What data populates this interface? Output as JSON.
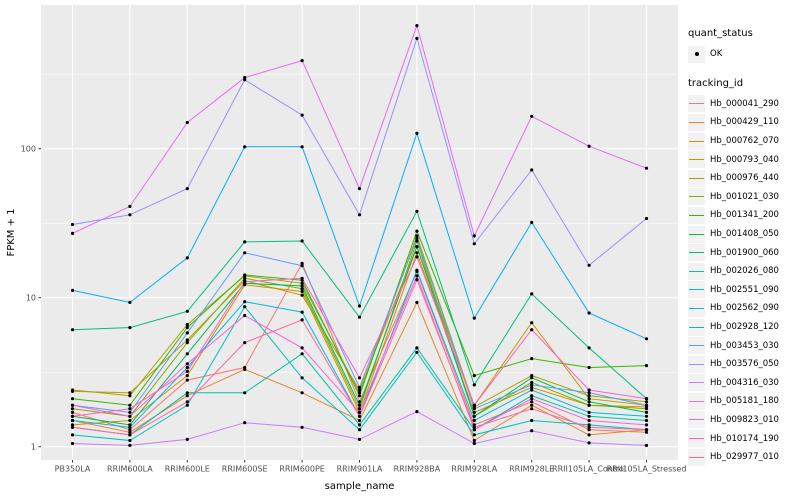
{
  "figure": {
    "y_axis_title": "FPKM + 1",
    "x_axis_title": "sample_name",
    "colors": {
      "panel_background": "#EBEBEB",
      "grid": "#FFFFFF",
      "tick_label": "#4D4D4D",
      "axis_title": "#000000",
      "point": "#000000",
      "legend_key_background": "#F2F2F2"
    }
  },
  "legend": {
    "quant_status_title": "quant_status",
    "quant_status_items": [
      {
        "label": "OK",
        "shape": "point"
      }
    ],
    "tracking_id_title": "tracking_id"
  },
  "chart_data": {
    "type": "line",
    "title": "",
    "xlabel": "sample_name",
    "ylabel": "FPKM + 1",
    "y_scale": "log10",
    "y_tick_labels": [
      "1",
      "10",
      "100"
    ],
    "y_ticks": [
      1,
      10,
      100
    ],
    "y_minor_gridlines": [
      3.162,
      31.62,
      316.2
    ],
    "ylim": [
      0.83,
      840
    ],
    "grid": true,
    "legend_position": "right",
    "points_marker": "black dot (quant_status = OK)",
    "x_categories": [
      "PB350LA",
      "RRIM600LA",
      "RRIM600LE",
      "RRIM600SE",
      "RRIM600PE",
      "RRIM901LA",
      "RRIM928BA",
      "RRIM928LA",
      "RRIM928LE",
      "RRII105LA_Control",
      "RRII105LA_Stressed"
    ],
    "series": [
      {
        "name": "Hb_000041_290",
        "color": "#F8766D",
        "values": [
          1.7,
          1.3,
          2.8,
          3.4,
          17,
          2.0,
          15,
          1.4,
          2.0,
          1.3,
          1.25
        ]
      },
      {
        "name": "Hb_000429_110",
        "color": "#EA8331",
        "values": [
          1.5,
          1.25,
          2.2,
          3.3,
          2.3,
          1.5,
          9.3,
          1.1,
          1.9,
          1.2,
          1.3
        ]
      },
      {
        "name": "Hb_000762_070",
        "color": "#D89000",
        "values": [
          1.4,
          1.5,
          3.0,
          12.2,
          11,
          1.7,
          20,
          1.7,
          2.5,
          1.9,
          1.85
        ]
      },
      {
        "name": "Hb_000793_040",
        "color": "#C09B00",
        "values": [
          2.35,
          2.3,
          5.2,
          13,
          10.4,
          2.4,
          22,
          1.9,
          6.8,
          2.1,
          1.9
        ]
      },
      {
        "name": "Hb_000976_440",
        "color": "#A3A500",
        "values": [
          2.4,
          2.2,
          6.6,
          14,
          12.5,
          2.3,
          26,
          1.85,
          3.0,
          2.2,
          2.0
        ]
      },
      {
        "name": "Hb_001021_030",
        "color": "#7CAE00",
        "values": [
          1.8,
          1.6,
          5.0,
          13.5,
          11.5,
          1.8,
          24,
          1.6,
          2.7,
          1.9,
          1.8
        ]
      },
      {
        "name": "Hb_001341_200",
        "color": "#39B600",
        "values": [
          2.1,
          1.9,
          6.3,
          14.2,
          13.1,
          2.2,
          28,
          3.0,
          3.9,
          3.4,
          3.5
        ]
      },
      {
        "name": "Hb_001408_050",
        "color": "#00BB4E",
        "values": [
          1.6,
          1.4,
          4.2,
          12.5,
          12,
          1.9,
          22,
          1.6,
          2.9,
          2.0,
          1.7
        ]
      },
      {
        "name": "Hb_001900_060",
        "color": "#00BF7D",
        "values": [
          6.1,
          6.3,
          8.1,
          23.7,
          24,
          7.4,
          38,
          2.6,
          10.6,
          4.6,
          2.1
        ]
      },
      {
        "name": "Hb_002026_080",
        "color": "#00C1A3",
        "values": [
          1.35,
          1.2,
          2.3,
          2.3,
          4.2,
          1.4,
          4.6,
          1.3,
          2.2,
          1.6,
          1.5
        ]
      },
      {
        "name": "Hb_002551_090",
        "color": "#00BFC4",
        "values": [
          1.2,
          1.1,
          1.9,
          8.7,
          2.9,
          1.3,
          4.3,
          1.2,
          1.5,
          1.4,
          1.3
        ]
      },
      {
        "name": "Hb_002562_090",
        "color": "#00BAE5",
        "values": [
          1.5,
          1.35,
          3.4,
          9.4,
          8.0,
          1.6,
          15.3,
          1.5,
          2.4,
          1.7,
          1.6
        ]
      },
      {
        "name": "Hb_002928_120",
        "color": "#00B0F6",
        "values": [
          11.2,
          9.3,
          18.5,
          103,
          103,
          8.8,
          127,
          7.3,
          32,
          7.9,
          5.3
        ]
      },
      {
        "name": "Hb_003453_030",
        "color": "#619CFF",
        "values": [
          1.9,
          1.7,
          5.8,
          20,
          16.4,
          2.5,
          25,
          1.8,
          2.6,
          2.3,
          1.9
        ]
      },
      {
        "name": "Hb_003576_050",
        "color": "#9590FF",
        "values": [
          31,
          36,
          54,
          290,
          168,
          36,
          550,
          23,
          72,
          16.5,
          34
        ]
      },
      {
        "name": "Hb_004316_030",
        "color": "#C77CFF",
        "values": [
          1.05,
          1.02,
          1.12,
          1.45,
          1.35,
          1.12,
          1.72,
          1.05,
          1.28,
          1.06,
          1.02
        ]
      },
      {
        "name": "Hb_005181_180",
        "color": "#E76BF3",
        "values": [
          27,
          41,
          150,
          300,
          390,
          54,
          670,
          26,
          165,
          104,
          74
        ]
      },
      {
        "name": "Hb_009823_010",
        "color": "#FA62DB",
        "values": [
          1.9,
          1.6,
          3.6,
          7.6,
          4.6,
          1.7,
          14,
          1.3,
          2.1,
          1.5,
          1.4
        ]
      },
      {
        "name": "Hb_010174_190",
        "color": "#FF61C9",
        "values": [
          1.6,
          1.8,
          3.2,
          12.8,
          13.5,
          2.9,
          18.8,
          1.9,
          6.1,
          2.4,
          2.1
        ]
      },
      {
        "name": "Hb_029977_010",
        "color": "#FF689E",
        "values": [
          1.35,
          1.2,
          2.0,
          5.0,
          7.1,
          1.6,
          13.2,
          1.35,
          1.8,
          1.35,
          1.3
        ]
      }
    ]
  }
}
